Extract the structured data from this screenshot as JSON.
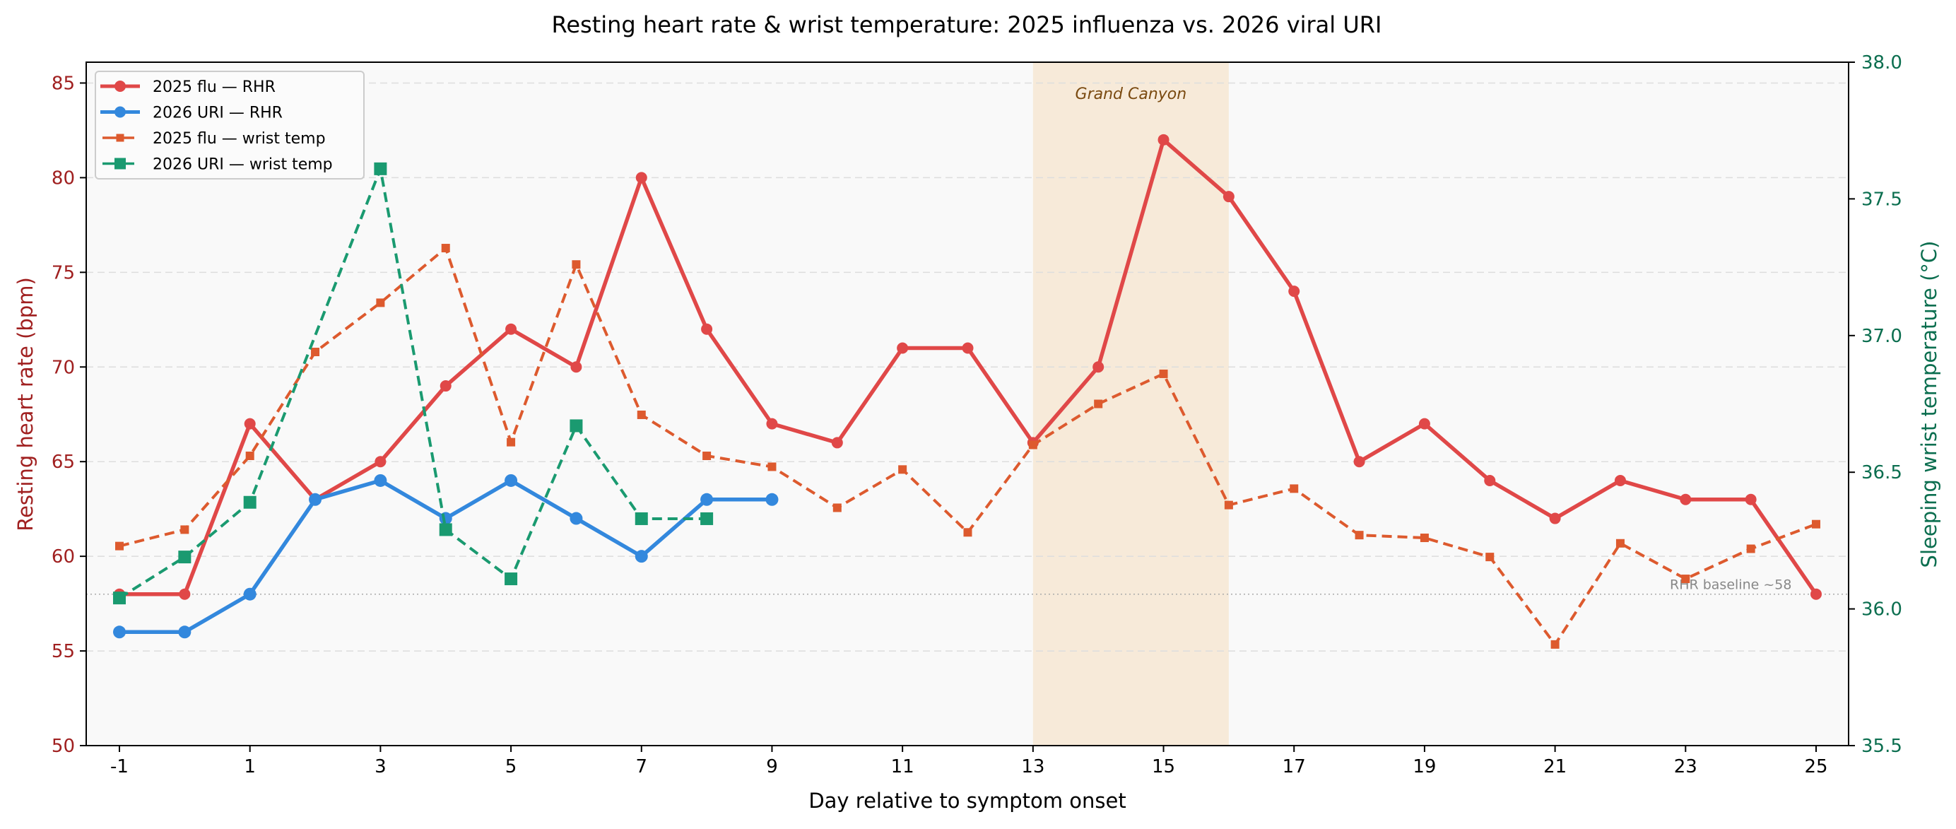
{
  "chart_data": {
    "type": "line",
    "title": "Resting heart rate & wrist temperature: 2025 influenza vs. 2026 viral URI",
    "xlabel": "Day relative to symptom onset",
    "ylabel": "Resting heart rate (bpm)",
    "y2label": "Sleeping wrist temperature (°C)",
    "xlim": [
      -1.5,
      25.5
    ],
    "ylim": [
      50,
      86.1
    ],
    "y2lim": [
      35.5,
      38.0
    ],
    "xticks": [
      -1,
      1,
      3,
      5,
      7,
      9,
      11,
      13,
      15,
      17,
      19,
      21,
      23,
      25
    ],
    "yticks": [
      50,
      55,
      60,
      65,
      70,
      75,
      80,
      85
    ],
    "y2ticks": [
      "35.5",
      "36.0",
      "36.5",
      "37.0",
      "37.5",
      "38.0"
    ],
    "grid": true,
    "legend_position": "top-left",
    "colors": {
      "left_axis": "#a02020",
      "right_axis": "#0b6e4f",
      "band": "#f5dfc0"
    },
    "shaded_region": {
      "from": 13,
      "to": 16,
      "label": "Grand Canyon"
    },
    "baseline": {
      "value": 58,
      "label": "RHR baseline ~58"
    },
    "series": [
      {
        "name": "2025 flu — RHR",
        "axis": "left",
        "color": "#e04848",
        "marker": "circle",
        "dashed": false,
        "x": [
          -1,
          0,
          1,
          2,
          3,
          4,
          5,
          6,
          7,
          8,
          9,
          10,
          11,
          12,
          13,
          14,
          15,
          16,
          17,
          18,
          19,
          20,
          21,
          22,
          23,
          24,
          25
        ],
        "y": [
          58,
          58,
          67,
          63,
          65,
          69,
          72,
          70,
          80,
          72,
          67,
          66,
          71,
          71,
          66,
          70,
          82,
          79,
          74,
          65,
          67,
          64,
          62,
          64,
          63,
          63,
          58
        ]
      },
      {
        "name": "2026 URI — RHR",
        "axis": "left",
        "color": "#3388dd",
        "marker": "circle",
        "dashed": false,
        "x": [
          -1,
          0,
          1,
          2,
          3,
          4,
          5,
          6,
          7,
          8,
          9
        ],
        "y": [
          56,
          56,
          58,
          63,
          64,
          62,
          64,
          62,
          60,
          63,
          63
        ]
      },
      {
        "name": "2025 flu — wrist temp",
        "axis": "right",
        "color": "#dd5a2e",
        "marker": "square-small",
        "dashed": true,
        "x": [
          -1,
          0,
          1,
          2,
          3,
          4,
          5,
          6,
          7,
          8,
          9,
          10,
          11,
          12,
          13,
          14,
          15,
          16,
          17,
          18,
          19,
          20,
          21,
          22,
          23,
          24,
          25
        ],
        "y": [
          36.23,
          36.29,
          36.56,
          36.94,
          37.12,
          37.32,
          36.61,
          37.26,
          36.71,
          36.56,
          36.52,
          36.37,
          36.51,
          36.28,
          36.6,
          36.75,
          36.86,
          36.38,
          36.44,
          36.27,
          36.26,
          36.19,
          35.87,
          36.24,
          36.11,
          36.22,
          36.31
        ]
      },
      {
        "name": "2026 URI — wrist temp",
        "axis": "right",
        "color": "#1a9a70",
        "marker": "square",
        "dashed": true,
        "x": [
          -1,
          0,
          1,
          3,
          4,
          5,
          6,
          7,
          8
        ],
        "y": [
          36.04,
          36.19,
          36.39,
          37.61,
          36.29,
          36.11,
          36.67,
          36.33,
          36.33
        ]
      }
    ]
  }
}
